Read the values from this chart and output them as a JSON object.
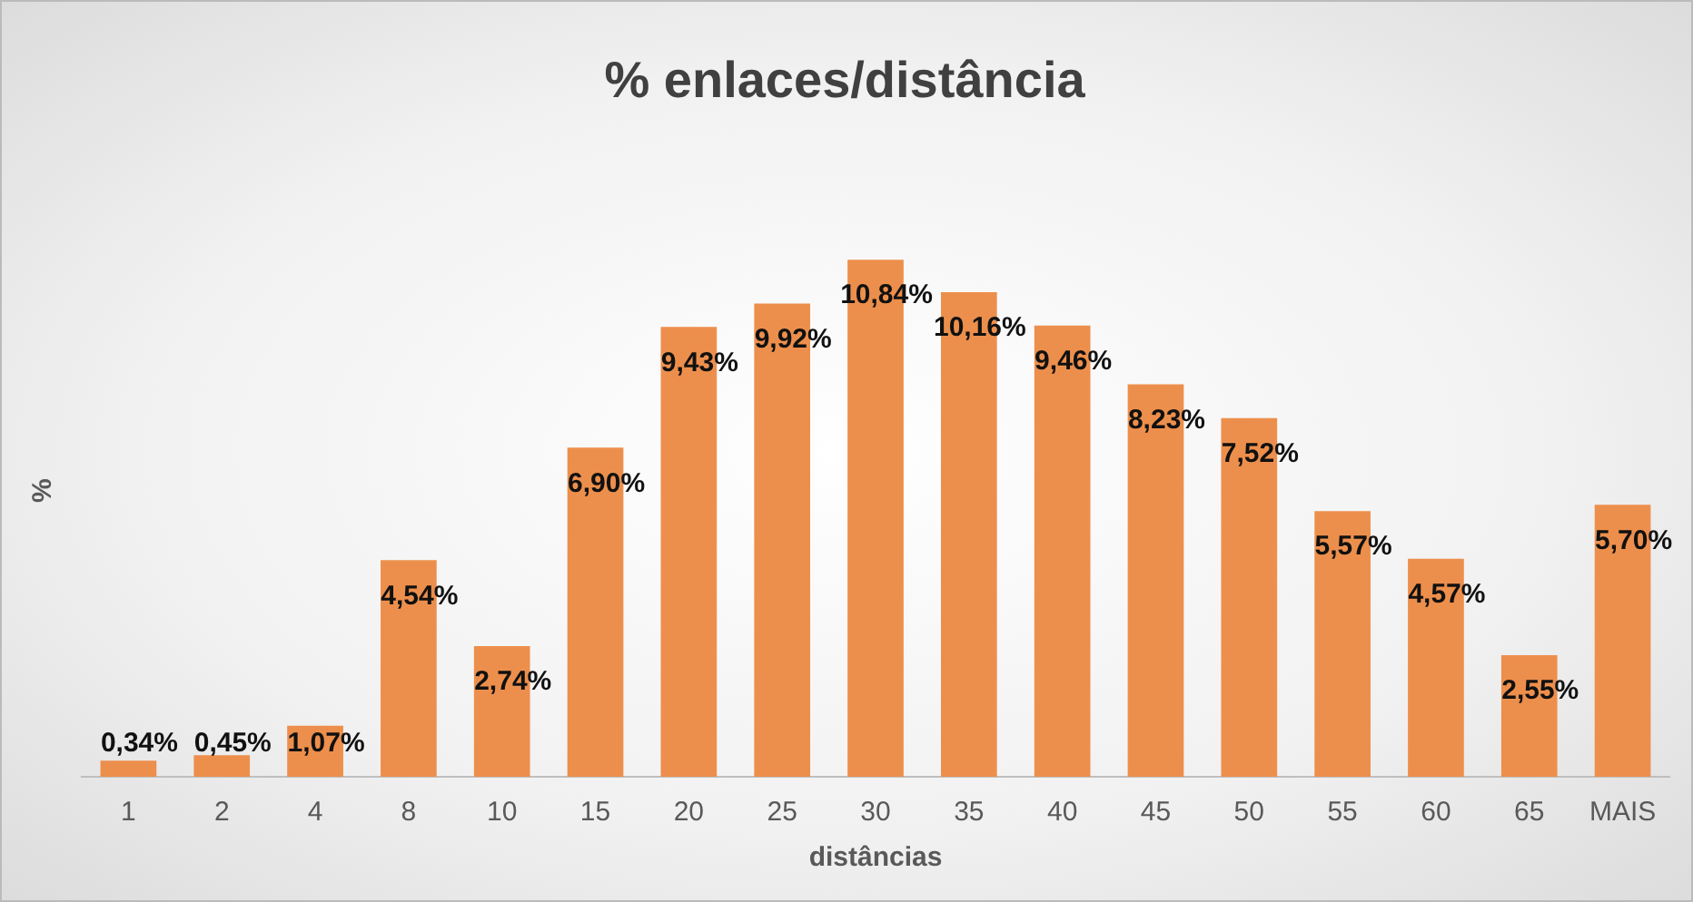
{
  "chart_data": {
    "type": "bar",
    "title": "% enlaces/distância",
    "xlabel": "distâncias",
    "ylabel": "%",
    "categories": [
      "1",
      "2",
      "4",
      "8",
      "10",
      "15",
      "20",
      "25",
      "30",
      "35",
      "40",
      "45",
      "50",
      "55",
      "60",
      "65",
      "MAIS"
    ],
    "values": [
      0.34,
      0.45,
      1.07,
      4.54,
      2.74,
      6.9,
      9.43,
      9.92,
      10.84,
      10.16,
      9.46,
      8.23,
      7.52,
      5.57,
      4.57,
      2.55,
      5.7
    ],
    "value_labels": [
      "0,34%",
      "0,45%",
      "1,07%",
      "4,54%",
      "2,74%",
      "6,90%",
      "9,43%",
      "9,92%",
      "10,84%",
      "10,16%",
      "9,46%",
      "8,23%",
      "7,52%",
      "5,57%",
      "4,57%",
      "2,55%",
      "5,70%"
    ],
    "color": "#ed8f4c",
    "grid": false,
    "legend": false
  }
}
